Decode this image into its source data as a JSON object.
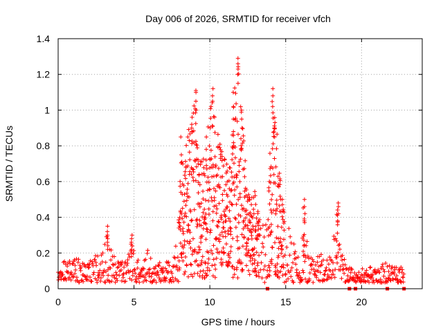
{
  "chart_data": {
    "type": "scatter",
    "title": "Day 006 of 2026, SRMTID for receiver vfch",
    "xlabel": "GPS time / hours",
    "ylabel": "SRMTID / TECUs",
    "xlim": [
      0,
      24
    ],
    "ylim": [
      0,
      1.4
    ],
    "grid": true,
    "legend": "none",
    "marker": "plus",
    "color": "#ff0000",
    "x_ticks": [
      {
        "value": 0,
        "label": "0"
      },
      {
        "value": 5,
        "label": "5"
      },
      {
        "value": 10,
        "label": "10"
      },
      {
        "value": 15,
        "label": "15"
      },
      {
        "value": 20,
        "label": "20"
      }
    ],
    "y_ticks": [
      {
        "value": 0,
        "label": "0"
      },
      {
        "value": 0.2,
        "label": "0.2"
      },
      {
        "value": 0.4,
        "label": "0.4"
      },
      {
        "value": 0.6,
        "label": "0.6"
      },
      {
        "value": 0.8,
        "label": "0.8"
      },
      {
        "value": 1.0,
        "label": "1"
      },
      {
        "value": 1.2,
        "label": "1.2"
      },
      {
        "value": 1.4,
        "label": "1.4"
      }
    ],
    "envelope": [
      [
        0.0,
        0.12
      ],
      [
        0.3,
        0.15
      ],
      [
        0.6,
        0.17
      ],
      [
        1.0,
        0.16
      ],
      [
        1.4,
        0.19
      ],
      [
        1.8,
        0.14
      ],
      [
        2.2,
        0.17
      ],
      [
        2.6,
        0.2
      ],
      [
        3.0,
        0.22
      ],
      [
        3.25,
        0.35
      ],
      [
        3.5,
        0.22
      ],
      [
        3.9,
        0.16
      ],
      [
        4.3,
        0.17
      ],
      [
        4.6,
        0.22
      ],
      [
        4.85,
        0.3
      ],
      [
        5.1,
        0.2
      ],
      [
        5.5,
        0.18
      ],
      [
        5.9,
        0.24
      ],
      [
        6.2,
        0.14
      ],
      [
        6.6,
        0.15
      ],
      [
        7.0,
        0.14
      ],
      [
        7.4,
        0.2
      ],
      [
        7.7,
        0.2
      ],
      [
        7.9,
        0.4
      ],
      [
        8.1,
        0.72
      ],
      [
        8.3,
        0.7
      ],
      [
        8.6,
        0.9
      ],
      [
        8.8,
        0.96
      ],
      [
        9.0,
        1.1
      ],
      [
        9.2,
        0.78
      ],
      [
        9.5,
        0.72
      ],
      [
        9.8,
        0.85
      ],
      [
        10.1,
        1.12
      ],
      [
        10.4,
        0.9
      ],
      [
        10.7,
        0.82
      ],
      [
        11.0,
        0.72
      ],
      [
        11.3,
        0.7
      ],
      [
        11.6,
        1.1
      ],
      [
        11.9,
        1.29
      ],
      [
        12.1,
        1.0
      ],
      [
        12.4,
        0.62
      ],
      [
        12.7,
        0.5
      ],
      [
        13.0,
        0.55
      ],
      [
        13.4,
        0.4
      ],
      [
        13.8,
        0.35
      ],
      [
        14.1,
        1.12
      ],
      [
        14.4,
        0.92
      ],
      [
        14.7,
        0.55
      ],
      [
        15.0,
        0.4
      ],
      [
        15.3,
        0.32
      ],
      [
        15.6,
        0.25
      ],
      [
        15.9,
        0.2
      ],
      [
        16.2,
        0.5
      ],
      [
        16.5,
        0.22
      ],
      [
        16.9,
        0.16
      ],
      [
        17.3,
        0.2
      ],
      [
        17.6,
        0.24
      ],
      [
        18.0,
        0.18
      ],
      [
        18.4,
        0.48
      ],
      [
        18.7,
        0.3
      ],
      [
        19.0,
        0.14
      ],
      [
        19.4,
        0.12
      ],
      [
        19.8,
        0.1
      ],
      [
        20.2,
        0.12
      ],
      [
        20.6,
        0.14
      ],
      [
        21.0,
        0.12
      ],
      [
        21.4,
        0.14
      ],
      [
        21.7,
        0.16
      ],
      [
        22.1,
        0.12
      ],
      [
        22.5,
        0.13
      ],
      [
        22.8,
        0.1
      ]
    ],
    "spikes": [
      {
        "x": 3.25,
        "values": [
          0.22,
          0.24,
          0.26,
          0.28,
          0.3,
          0.32,
          0.35
        ]
      },
      {
        "x": 4.85,
        "values": [
          0.18,
          0.2,
          0.22,
          0.24,
          0.26,
          0.28,
          0.3
        ]
      },
      {
        "x": 8.1,
        "values": [
          0.75,
          0.85
        ]
      },
      {
        "x": 8.8,
        "values": [
          0.88,
          0.92,
          0.96
        ]
      },
      {
        "x": 9.1,
        "values": [
          1.0,
          1.05,
          1.1,
          1.11
        ]
      },
      {
        "x": 9.75,
        "values": [
          0.85,
          0.78,
          0.72
        ]
      },
      {
        "x": 10.2,
        "values": [
          1.05,
          1.08,
          1.12
        ]
      },
      {
        "x": 11.55,
        "values": [
          0.8,
          0.88,
          0.95,
          1.02,
          1.1
        ]
      },
      {
        "x": 11.85,
        "values": [
          1.15,
          1.2,
          1.23,
          1.26,
          1.29
        ]
      },
      {
        "x": 12.1,
        "values": [
          0.9,
          0.95,
          1.0
        ]
      },
      {
        "x": 14.15,
        "values": [
          1.02,
          1.08,
          1.12
        ]
      },
      {
        "x": 14.3,
        "values": [
          0.85,
          0.9,
          0.93
        ]
      },
      {
        "x": 16.25,
        "values": [
          0.38,
          0.42,
          0.46,
          0.5
        ]
      },
      {
        "x": 18.45,
        "values": [
          0.38,
          0.42,
          0.46,
          0.48
        ]
      }
    ],
    "zero_markers": [
      13.8,
      19.2,
      19.6,
      21.7,
      22.8
    ]
  }
}
